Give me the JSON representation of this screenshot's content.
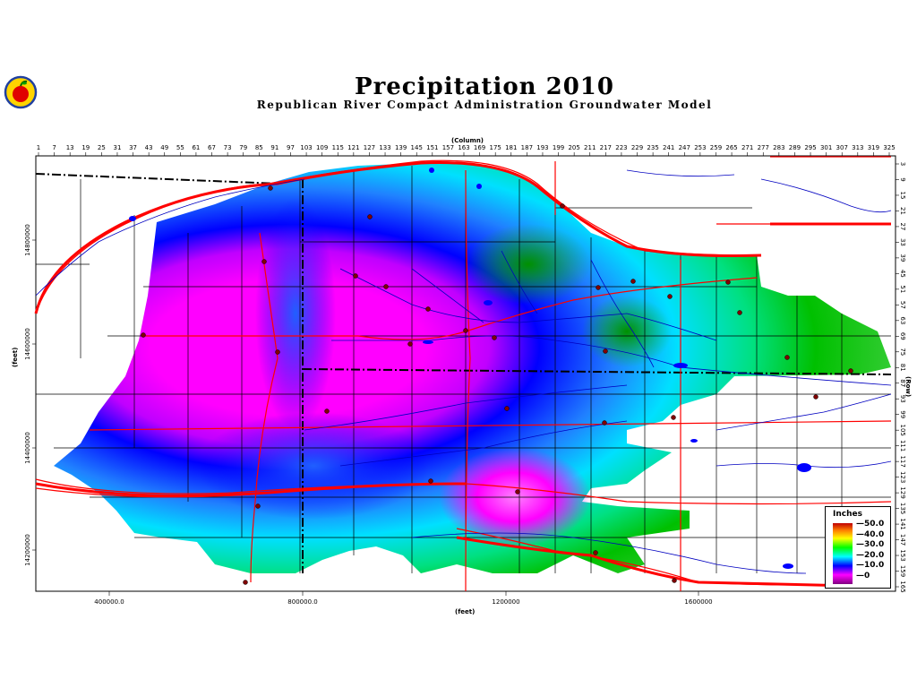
{
  "title": "Precipitation 2010",
  "subtitle": "Republican River Compact Administration Groundwater Model",
  "column_axis_label": "(Column)",
  "row_axis_label": "(Row)",
  "x_axis_label": "(feet)",
  "y_axis_label": "(feet)",
  "column_ticks": [
    "1",
    "7",
    "13",
    "19",
    "25",
    "31",
    "37",
    "43",
    "49",
    "55",
    "61",
    "67",
    "73",
    "79",
    "85",
    "91",
    "97",
    "103",
    "109",
    "115",
    "121",
    "127",
    "133",
    "139",
    "145",
    "151",
    "157",
    "163",
    "169",
    "175",
    "181",
    "187",
    "193",
    "199",
    "205",
    "211",
    "217",
    "223",
    "229",
    "235",
    "241",
    "247",
    "253",
    "259",
    "265",
    "271",
    "277",
    "283",
    "289",
    "295",
    "301",
    "307",
    "313",
    "319",
    "325"
  ],
  "row_ticks": [
    "3",
    "9",
    "15",
    "21",
    "27",
    "33",
    "39",
    "45",
    "51",
    "57",
    "63",
    "69",
    "75",
    "81",
    "87",
    "93",
    "99",
    "105",
    "111",
    "117",
    "123",
    "129",
    "135",
    "141",
    "147",
    "153",
    "159",
    "165"
  ],
  "x_ticks": [
    "400000.0",
    "800000.0",
    "1200000",
    "1600000"
  ],
  "y_ticks": [
    "14800000",
    "14600000",
    "14400000",
    "14200000"
  ],
  "legend": {
    "title": "Inches",
    "labels": [
      "50.0",
      "40.0",
      "30.0",
      "20.0",
      "10.0",
      "0"
    ]
  },
  "colors": {
    "purple": "#a000d8",
    "magenta": "#ff00ff",
    "blue": "#0000ff",
    "cyan": "#00ffff",
    "green": "#00c000",
    "boundary": "#000000",
    "road": "#ff0000",
    "river": "#0000c0"
  }
}
